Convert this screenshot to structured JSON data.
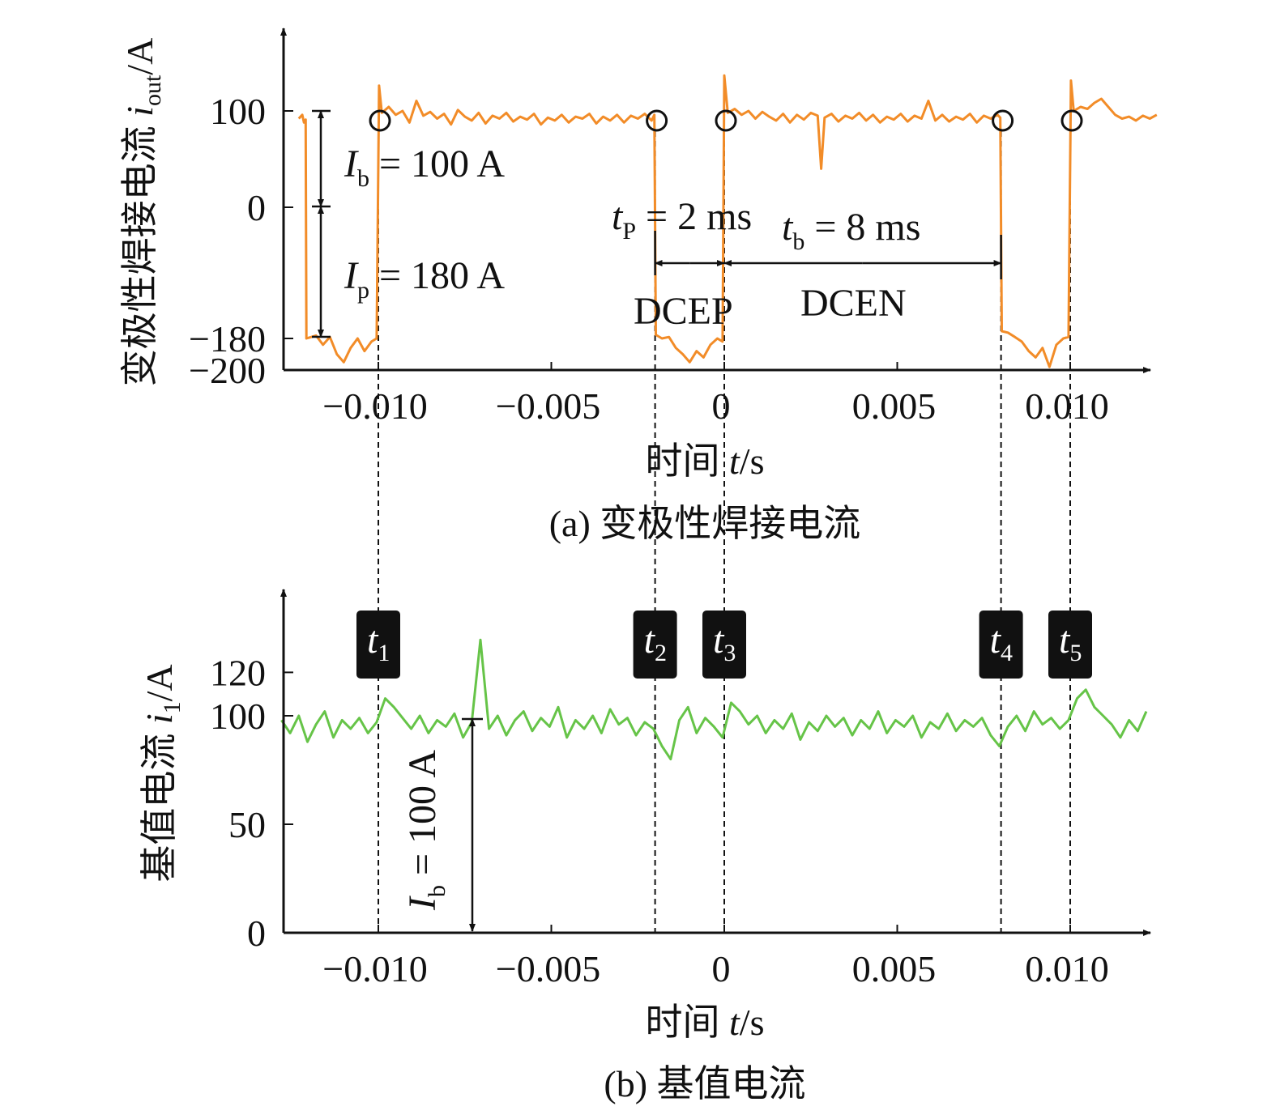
{
  "chart_data": [
    {
      "type": "line",
      "caption": "(a) 变极性焊接电流",
      "xlabel": {
        "text": "时间 ",
        "var": "t",
        "unit": "/s"
      },
      "ylabel": {
        "text": "变极性焊接电流 ",
        "var": "i",
        "sub": "out",
        "unit": "/A"
      },
      "xticks": [
        -0.01,
        -0.005,
        0,
        0.005,
        0.01
      ],
      "xtick_labels": [
        "−0.010",
        "−0.005",
        "0",
        "0.005",
        "0.010"
      ],
      "yticks": [
        100,
        0,
        -180,
        -200
      ],
      "ytick_labels": [
        "100",
        "0",
        "−180",
        "−200"
      ],
      "xlim": [
        -0.0127,
        0.0124
      ],
      "ylim": [
        -200,
        140
      ],
      "color": "#f28c28",
      "event_markers": [
        -0.01,
        -0.002,
        0,
        0.008,
        0.01
      ],
      "annotations": {
        "ib": {
          "sym": "I",
          "sub": "b",
          "rest": " = 100 A"
        },
        "ip": {
          "sym": "I",
          "sub": "p",
          "rest": " = 180 A"
        },
        "tp": {
          "sym": "t",
          "sub": "P",
          "rest": " = 2 ms"
        },
        "tb": {
          "sym": "t",
          "sub": "b",
          "rest": " = 8 ms"
        },
        "dcep": "DCEP",
        "dcen": "DCEN"
      },
      "series": [
        {
          "points": [
            [
              -0.0123,
              92
            ],
            [
              -0.0122,
              96
            ],
            [
              -0.01215,
              88
            ],
            [
              -0.0121,
              91
            ],
            [
              -0.01208,
              -180
            ],
            [
              -0.0118,
              -176
            ],
            [
              -0.0116,
              -184
            ],
            [
              -0.0114,
              -178
            ],
            [
              -0.0112,
              -190
            ],
            [
              -0.011,
              -195
            ],
            [
              -0.0108,
              -186
            ],
            [
              -0.0106,
              -180
            ],
            [
              -0.0104,
              -188
            ],
            [
              -0.0102,
              -182
            ],
            [
              -0.01005,
              -180
            ],
            [
              -0.00998,
              125
            ],
            [
              -0.0099,
              98
            ],
            [
              -0.0097,
              104
            ],
            [
              -0.0095,
              96
            ],
            [
              -0.0093,
              100
            ],
            [
              -0.0091,
              88
            ],
            [
              -0.0089,
              110
            ],
            [
              -0.0087,
              95
            ],
            [
              -0.0085,
              99
            ],
            [
              -0.0083,
              92
            ],
            [
              -0.0081,
              97
            ],
            [
              -0.0079,
              86
            ],
            [
              -0.0077,
              101
            ],
            [
              -0.0075,
              94
            ],
            [
              -0.0073,
              90
            ],
            [
              -0.0071,
              98
            ],
            [
              -0.0069,
              87
            ],
            [
              -0.0067,
              95
            ],
            [
              -0.0065,
              92
            ],
            [
              -0.0063,
              98
            ],
            [
              -0.0061,
              89
            ],
            [
              -0.0059,
              94
            ],
            [
              -0.0057,
              91
            ],
            [
              -0.0055,
              97
            ],
            [
              -0.0053,
              86
            ],
            [
              -0.0051,
              93
            ],
            [
              -0.0049,
              90
            ],
            [
              -0.0047,
              96
            ],
            [
              -0.0045,
              88
            ],
            [
              -0.0043,
              94
            ],
            [
              -0.0041,
              92
            ],
            [
              -0.0039,
              97
            ],
            [
              -0.0037,
              87
            ],
            [
              -0.0035,
              94
            ],
            [
              -0.0033,
              90
            ],
            [
              -0.0031,
              96
            ],
            [
              -0.0029,
              88
            ],
            [
              -0.0027,
              95
            ],
            [
              -0.0025,
              92
            ],
            [
              -0.0023,
              97
            ],
            [
              -0.0021,
              90
            ],
            [
              -0.00202,
              96
            ],
            [
              -0.00198,
              -175
            ],
            [
              -0.0018,
              -180
            ],
            [
              -0.0016,
              -178
            ],
            [
              -0.0014,
              -186
            ],
            [
              -0.0012,
              -190
            ],
            [
              -0.001,
              -195
            ],
            [
              -0.0008,
              -188
            ],
            [
              -0.0006,
              -192
            ],
            [
              -0.0004,
              -184
            ],
            [
              -0.0002,
              -180
            ],
            [
              -5e-05,
              -182
            ],
            [
              0.0,
              135
            ],
            [
              0.0001,
              98
            ],
            [
              0.0003,
              102
            ],
            [
              0.0005,
              96
            ],
            [
              0.0007,
              100
            ],
            [
              0.0009,
              92
            ],
            [
              0.0011,
              99
            ],
            [
              0.0013,
              94
            ],
            [
              0.0015,
              90
            ],
            [
              0.0017,
              97
            ],
            [
              0.0019,
              88
            ],
            [
              0.0021,
              96
            ],
            [
              0.0023,
              91
            ],
            [
              0.0025,
              98
            ],
            [
              0.0027,
              95
            ],
            [
              0.0028,
              40
            ],
            [
              0.0029,
              93
            ],
            [
              0.0031,
              97
            ],
            [
              0.0033,
              89
            ],
            [
              0.0035,
              95
            ],
            [
              0.0037,
              92
            ],
            [
              0.0039,
              98
            ],
            [
              0.0041,
              90
            ],
            [
              0.0043,
              96
            ],
            [
              0.0045,
              88
            ],
            [
              0.0047,
              94
            ],
            [
              0.0049,
              91
            ],
            [
              0.0051,
              97
            ],
            [
              0.0053,
              89
            ],
            [
              0.0055,
              95
            ],
            [
              0.0057,
              92
            ],
            [
              0.0059,
              110
            ],
            [
              0.0061,
              90
            ],
            [
              0.0063,
              96
            ],
            [
              0.0065,
              89
            ],
            [
              0.0067,
              94
            ],
            [
              0.0069,
              91
            ],
            [
              0.0071,
              97
            ],
            [
              0.0073,
              88
            ],
            [
              0.0075,
              95
            ],
            [
              0.0077,
              92
            ],
            [
              0.0079,
              96
            ],
            [
              0.00798,
              93
            ],
            [
              0.00802,
              -170
            ],
            [
              0.0082,
              -172
            ],
            [
              0.0084,
              -178
            ],
            [
              0.0086,
              -182
            ],
            [
              0.0088,
              -188
            ],
            [
              0.009,
              -192
            ],
            [
              0.0092,
              -186
            ],
            [
              0.0094,
              -198
            ],
            [
              0.0096,
              -184
            ],
            [
              0.0098,
              -180
            ],
            [
              0.00995,
              -178
            ],
            [
              0.01002,
              130
            ],
            [
              0.0101,
              100
            ],
            [
              0.0103,
              104
            ],
            [
              0.0105,
              102
            ],
            [
              0.0107,
              108
            ],
            [
              0.0109,
              112
            ],
            [
              0.0111,
              104
            ],
            [
              0.0113,
              96
            ],
            [
              0.0115,
              92
            ],
            [
              0.0117,
              94
            ],
            [
              0.0119,
              90
            ],
            [
              0.0121,
              95
            ],
            [
              0.0123,
              92
            ],
            [
              0.0125,
              96
            ]
          ]
        }
      ]
    },
    {
      "type": "line",
      "caption": "(b) 基值电流",
      "xlabel": {
        "text": "时间 ",
        "var": "t",
        "unit": "/s"
      },
      "ylabel": {
        "text": "基值电流 ",
        "var": "i",
        "sub": "1",
        "unit": "/A"
      },
      "xticks": [
        -0.01,
        -0.005,
        0,
        0.005,
        0.01
      ],
      "xtick_labels": [
        "−0.010",
        "−0.005",
        "0",
        "0.005",
        "0.010"
      ],
      "yticks": [
        120,
        100,
        50,
        0
      ],
      "ytick_labels": [
        "120",
        "100",
        "50",
        "0"
      ],
      "xlim": [
        -0.0127,
        0.0124
      ],
      "ylim": [
        0,
        150
      ],
      "color": "#66c448",
      "event_labels": [
        {
          "t": -0.01,
          "sym": "t",
          "sub": "1"
        },
        {
          "t": -0.002,
          "sym": "t",
          "sub": "2"
        },
        {
          "t": 0,
          "sym": "t",
          "sub": "3"
        },
        {
          "t": 0.008,
          "sym": "t",
          "sub": "4"
        },
        {
          "t": 0.01,
          "sym": "t",
          "sub": "5"
        }
      ],
      "annotations": {
        "ib": {
          "sym": "I",
          "sub": "b",
          "rest": " = 100 A"
        }
      },
      "series": [
        {
          "points": [
            [
              -0.0128,
              98
            ],
            [
              -0.01255,
              92
            ],
            [
              -0.0123,
              100
            ],
            [
              -0.01205,
              88
            ],
            [
              -0.0118,
              96
            ],
            [
              -0.01155,
              102
            ],
            [
              -0.0113,
              90
            ],
            [
              -0.01105,
              98
            ],
            [
              -0.0108,
              94
            ],
            [
              -0.01055,
              99
            ],
            [
              -0.0103,
              92
            ],
            [
              -0.01005,
              97
            ],
            [
              -0.0098,
              108
            ],
            [
              -0.00955,
              104
            ],
            [
              -0.0093,
              99
            ],
            [
              -0.00905,
              94
            ],
            [
              -0.0088,
              100
            ],
            [
              -0.00855,
              92
            ],
            [
              -0.0083,
              98
            ],
            [
              -0.00805,
              95
            ],
            [
              -0.0078,
              101
            ],
            [
              -0.00755,
              90
            ],
            [
              -0.0073,
              97
            ],
            [
              -0.00705,
              135
            ],
            [
              -0.0068,
              94
            ],
            [
              -0.00655,
              100
            ],
            [
              -0.0063,
              91
            ],
            [
              -0.00605,
              98
            ],
            [
              -0.0058,
              102
            ],
            [
              -0.00555,
              93
            ],
            [
              -0.0053,
              99
            ],
            [
              -0.00505,
              95
            ],
            [
              -0.0048,
              104
            ],
            [
              -0.00455,
              90
            ],
            [
              -0.0043,
              98
            ],
            [
              -0.00405,
              94
            ],
            [
              -0.0038,
              100
            ],
            [
              -0.00355,
              92
            ],
            [
              -0.0033,
              103
            ],
            [
              -0.00305,
              96
            ],
            [
              -0.0028,
              99
            ],
            [
              -0.00255,
              91
            ],
            [
              -0.0023,
              97
            ],
            [
              -0.00205,
              94
            ],
            [
              -0.0018,
              86
            ],
            [
              -0.00155,
              80
            ],
            [
              -0.0013,
              98
            ],
            [
              -0.00105,
              104
            ],
            [
              -0.0008,
              92
            ],
            [
              -0.00055,
              99
            ],
            [
              -0.0003,
              95
            ],
            [
              -5e-05,
              90
            ],
            [
              0.0002,
              106
            ],
            [
              0.00045,
              102
            ],
            [
              0.0007,
              96
            ],
            [
              0.00095,
              100
            ],
            [
              0.0012,
              92
            ],
            [
              0.00145,
              98
            ],
            [
              0.0017,
              94
            ],
            [
              0.00195,
              101
            ],
            [
              0.0022,
              89
            ],
            [
              0.00245,
              97
            ],
            [
              0.0027,
              93
            ],
            [
              0.00295,
              100
            ],
            [
              0.0032,
              95
            ],
            [
              0.00345,
              99
            ],
            [
              0.0037,
              91
            ],
            [
              0.00395,
              98
            ],
            [
              0.0042,
              94
            ],
            [
              0.00445,
              102
            ],
            [
              0.0047,
              92
            ],
            [
              0.00495,
              98
            ],
            [
              0.0052,
              95
            ],
            [
              0.00545,
              100
            ],
            [
              0.0057,
              90
            ],
            [
              0.00595,
              97
            ],
            [
              0.0062,
              94
            ],
            [
              0.00645,
              101
            ],
            [
              0.0067,
              93
            ],
            [
              0.00695,
              98
            ],
            [
              0.0072,
              95
            ],
            [
              0.00745,
              99
            ],
            [
              0.0077,
              91
            ],
            [
              0.00795,
              86
            ],
            [
              0.0082,
              95
            ],
            [
              0.00845,
              100
            ],
            [
              0.0087,
              93
            ],
            [
              0.00895,
              102
            ],
            [
              0.0092,
              96
            ],
            [
              0.00945,
              99
            ],
            [
              0.0097,
              94
            ],
            [
              0.00995,
              98
            ],
            [
              0.0102,
              108
            ],
            [
              0.01045,
              112
            ],
            [
              0.0107,
              104
            ],
            [
              0.01095,
              100
            ],
            [
              0.0112,
              96
            ],
            [
              0.01145,
              90
            ],
            [
              0.0117,
              98
            ],
            [
              0.01195,
              93
            ],
            [
              0.0122,
              102
            ]
          ]
        }
      ]
    }
  ]
}
